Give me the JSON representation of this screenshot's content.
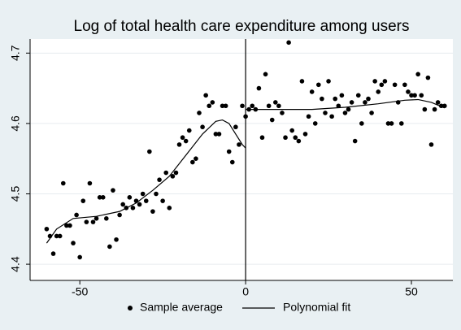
{
  "chart_data": {
    "type": "scatter",
    "title": "Log of total health care expenditure among users",
    "xlim": [
      -65,
      62.5
    ],
    "ylim": [
      4.377,
      4.72
    ],
    "xticks": [
      -50,
      0,
      50
    ],
    "yticks": [
      4.4,
      4.5,
      4.6,
      4.7
    ],
    "vline": 0,
    "grid": true,
    "legend": "bottom",
    "series": [
      {
        "name": "Sample average",
        "color": "#000000",
        "kind": "points",
        "x": [
          -60,
          -59,
          -58,
          -57,
          -56,
          -55,
          -54,
          -53,
          -52,
          -51,
          -50,
          -49,
          -48,
          -47,
          -46,
          -45,
          -44,
          -43,
          -42,
          -41,
          -40,
          -39,
          -38,
          -37,
          -36,
          -35,
          -34,
          -33,
          -32,
          -31,
          -30,
          -29,
          -28,
          -27,
          -26,
          -25,
          -24,
          -23,
          -22,
          -21,
          -20,
          -19,
          -18,
          -17,
          -16,
          -15,
          -14,
          -13,
          -12,
          -11,
          -10,
          -9,
          -8,
          -7,
          -6,
          -5,
          -4,
          -3,
          -2,
          -1,
          0,
          1,
          2,
          3,
          4,
          5,
          6,
          7,
          8,
          9,
          10,
          11,
          12,
          13,
          14,
          15,
          16,
          17,
          18,
          19,
          20,
          21,
          22,
          23,
          24,
          25,
          26,
          27,
          28,
          29,
          30,
          31,
          32,
          33,
          34,
          35,
          36,
          37,
          38,
          39,
          40,
          41,
          42,
          43,
          44,
          45,
          46,
          47,
          48,
          49,
          50,
          51,
          52,
          53,
          54,
          55,
          56,
          57,
          58,
          59,
          60
        ],
        "values": [
          4.45,
          4.44,
          4.415,
          4.44,
          4.44,
          4.515,
          4.455,
          4.455,
          4.43,
          4.47,
          4.41,
          4.49,
          4.46,
          4.515,
          4.46,
          4.465,
          4.495,
          4.495,
          4.465,
          4.425,
          4.505,
          4.435,
          4.47,
          4.485,
          4.48,
          4.495,
          4.48,
          4.49,
          4.485,
          4.5,
          4.49,
          4.56,
          4.475,
          4.5,
          4.52,
          4.49,
          4.53,
          4.48,
          4.525,
          4.53,
          4.57,
          4.58,
          4.575,
          4.59,
          4.545,
          4.55,
          4.615,
          4.595,
          4.64,
          4.625,
          4.63,
          4.585,
          4.585,
          4.625,
          4.625,
          4.56,
          4.545,
          4.595,
          4.57,
          4.625,
          4.61,
          4.62,
          4.625,
          4.62,
          4.65,
          4.58,
          4.67,
          4.625,
          4.605,
          4.63,
          4.625,
          4.615,
          4.58,
          4.715,
          4.59,
          4.58,
          4.575,
          4.66,
          4.585,
          4.61,
          4.645,
          4.6,
          4.655,
          4.635,
          4.615,
          4.66,
          4.61,
          4.635,
          4.625,
          4.64,
          4.615,
          4.62,
          4.63,
          4.575,
          4.64,
          4.6,
          4.63,
          4.635,
          4.615,
          4.66,
          4.645,
          4.655,
          4.66,
          4.6,
          4.6,
          4.655,
          4.63,
          4.6,
          4.655,
          4.645,
          4.64,
          4.64,
          4.67,
          4.64,
          4.62,
          4.665,
          4.57,
          4.62,
          4.63,
          4.625,
          4.625
        ]
      },
      {
        "name": "Polynomial fit",
        "color": "#000000",
        "kind": "line",
        "x": [
          -60,
          -57,
          -52,
          -45,
          -38,
          -33,
          -28,
          -23,
          -18,
          -13,
          -9,
          -7,
          -5,
          -3,
          -1,
          0,
          0,
          0,
          5,
          10,
          20,
          30,
          40,
          48,
          52,
          56,
          60
        ],
        "values": [
          4.43,
          4.45,
          4.465,
          4.468,
          4.475,
          4.487,
          4.505,
          4.525,
          4.555,
          4.585,
          4.603,
          4.605,
          4.6,
          4.585,
          4.57,
          4.565,
          null,
          4.62,
          4.62,
          4.62,
          4.62,
          4.623,
          4.628,
          4.633,
          4.634,
          4.63,
          4.622
        ]
      }
    ]
  }
}
